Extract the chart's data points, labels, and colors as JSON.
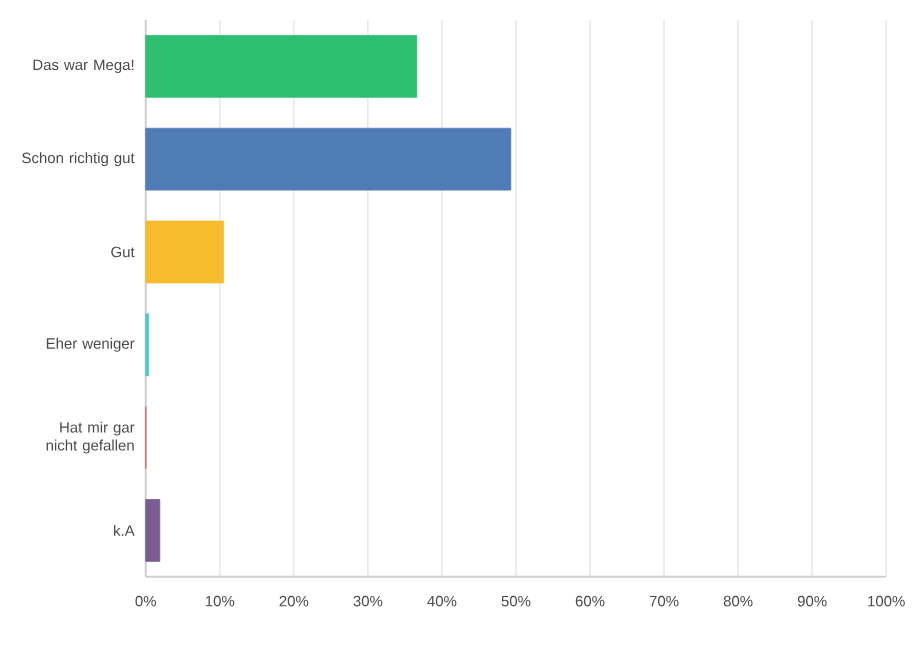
{
  "chart_data": {
    "type": "bar",
    "orientation": "horizontal",
    "categories": [
      "Das war Mega!",
      "Schon richtig gut",
      "Gut",
      "Eher weniger",
      "Hat mir gar nicht gefallen",
      "k.A"
    ],
    "values": [
      36.6,
      49.3,
      10.5,
      0.4,
      0,
      1.9
    ],
    "colors": [
      "#2dbe72",
      "#507cb6",
      "#f7bc2e",
      "#4fc8d0",
      "#d25f5f",
      "#7b5c92"
    ],
    "xlim": [
      0,
      100
    ],
    "xticks": [
      {
        "value": 0,
        "label": "0%"
      },
      {
        "value": 10,
        "label": "10%"
      },
      {
        "value": 20,
        "label": "20%"
      },
      {
        "value": 30,
        "label": "30%"
      },
      {
        "value": 40,
        "label": "40%"
      },
      {
        "value": 50,
        "label": "50%"
      },
      {
        "value": 60,
        "label": "60%"
      },
      {
        "value": 70,
        "label": "70%"
      },
      {
        "value": 80,
        "label": "80%"
      },
      {
        "value": 90,
        "label": "90%"
      },
      {
        "value": 100,
        "label": "100%"
      }
    ],
    "grid": "x"
  }
}
